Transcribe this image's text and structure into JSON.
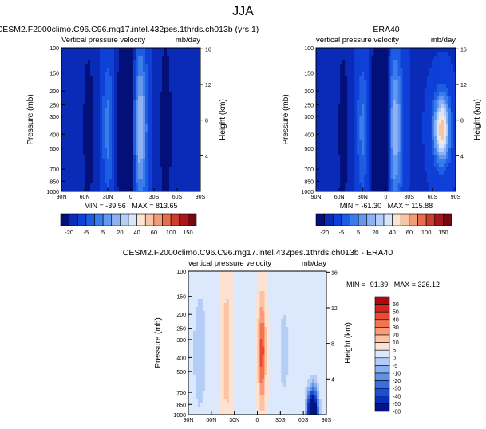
{
  "figure": {
    "title": "JJA"
  },
  "colorbar_top": {
    "colors": [
      "#03107a",
      "#0a2ab8",
      "#0e3fd7",
      "#1d5de3",
      "#3b7ceb",
      "#6597ef",
      "#8cb2f5",
      "#b6cdf7",
      "#d8e5fb",
      "#fbe4d3",
      "#f9c3a4",
      "#f49c77",
      "#e86d4c",
      "#cc3e2b",
      "#a6161a",
      "#7a0710"
    ],
    "labels": [
      "-20",
      "-5",
      "5",
      "20",
      "40",
      "60",
      "100",
      "150"
    ]
  },
  "colorbar_diff": {
    "colors": [
      "#b1080f",
      "#d2261e",
      "#e94b35",
      "#f4744f",
      "#f89c7a",
      "#fbc2a4",
      "#fde2d1",
      "#dce8fb",
      "#b4cdf7",
      "#8aaff2",
      "#5f90ea",
      "#356fe0",
      "#1c4fd0",
      "#0c30b5",
      "#021486"
    ],
    "labels": [
      "60",
      "50",
      "40",
      "30",
      "20",
      "10",
      "5",
      "0",
      "-5",
      "-10",
      "-20",
      "-30",
      "-40",
      "-50",
      "-60"
    ]
  },
  "chart_data": [
    {
      "type": "heatmap",
      "panel": "cesm",
      "title": "CESM2.F2000climo.C96.C96.mg17.intel.432pes.1thrds.ch013b (yrs 1)",
      "left_subtitle": "Vertical pressure velocity",
      "right_subtitle": "mb/day",
      "ylabel": "Pressure (mb)",
      "ylabel_right": "Height (km)",
      "xticks": [
        "90N",
        "60N",
        "30N",
        "0",
        "30S",
        "60S",
        "90S"
      ],
      "yticks": [
        "100",
        "150",
        "200",
        "250",
        "300",
        "400",
        "500",
        "700",
        "850",
        "1000"
      ],
      "yticks_right": [
        "16",
        "12",
        "8",
        "4"
      ],
      "stats": "MIN = -39.56   MAX = 813.65",
      "min": -39.56,
      "max": 813.65,
      "ylim": [
        1000,
        100
      ],
      "xlim": [
        90,
        -90
      ],
      "fields": [
        {
          "lat": 3,
          "sigma_lat": 5,
          "amp": -4.6,
          "sigma_z": 7
        },
        {
          "lat": 14,
          "sigma_lat": 4,
          "amp": -1.4,
          "sigma_z": 6
        },
        {
          "lat": -12,
          "sigma_lat": 6,
          "amp": 3.2,
          "sigma_z": 6
        },
        {
          "lat": -2,
          "sigma_lat": 3,
          "amp": 1.2,
          "sigma_z": 4
        },
        {
          "lat": 30,
          "sigma_lat": 5,
          "amp": 1.6,
          "sigma_z": 5
        },
        {
          "lat": 55,
          "sigma_lat": 6,
          "amp": -1.0,
          "sigma_z": 8
        },
        {
          "lat": -45,
          "sigma_lat": 6,
          "amp": -1.2,
          "sigma_z": 8
        }
      ],
      "base": -2.2
    },
    {
      "type": "heatmap",
      "panel": "era40",
      "title": "ERA40",
      "left_subtitle": "vertical pressure velocity",
      "right_subtitle": "mb/day",
      "ylabel": "Pressure (mb)",
      "ylabel_right": "Height (km)",
      "xticks": [
        "90N",
        "60N",
        "30N",
        "0",
        "30S",
        "60S",
        "90S"
      ],
      "yticks": [
        "100",
        "150",
        "200",
        "250",
        "300",
        "400",
        "500",
        "700",
        "850",
        "1000"
      ],
      "yticks_right": [
        "16",
        "12",
        "8",
        "4"
      ],
      "stats": "MIN = -61.30   MAX = 115.88",
      "min": -61.3,
      "max": 115.88,
      "ylim": [
        1000,
        100
      ],
      "xlim": [
        90,
        -90
      ],
      "fields": [
        {
          "lat": 4,
          "sigma_lat": 5,
          "amp": -4.8,
          "sigma_z": 7
        },
        {
          "lat": 15,
          "sigma_lat": 4,
          "amp": -1.5,
          "sigma_z": 6
        },
        {
          "lat": -12,
          "sigma_lat": 6,
          "amp": 3.0,
          "sigma_z": 6
        },
        {
          "lat": 30,
          "sigma_lat": 5,
          "amp": 1.5,
          "sigma_z": 5
        },
        {
          "lat": -72,
          "sigma_lat": 7,
          "amp": 5.5,
          "sigma_z": 2.5
        },
        {
          "lat": 55,
          "sigma_lat": 6,
          "amp": -1.0,
          "sigma_z": 8
        }
      ],
      "base": -2.2
    },
    {
      "type": "heatmap",
      "panel": "diff",
      "title": "CESM2.F2000climo.C96.C96.mg17.intel.432pes.1thrds.ch013b - ERA40",
      "left_subtitle": "vertical pressure velocity",
      "right_subtitle": "mb/day",
      "ylabel": "Pressure (mb)",
      "ylabel_right": "Height (km)",
      "xticks": [
        "90N",
        "60N",
        "30N",
        "0",
        "30S",
        "60S",
        "90S"
      ],
      "yticks": [
        "100",
        "150",
        "200",
        "250",
        "300",
        "400",
        "500",
        "700",
        "850",
        "1000"
      ],
      "yticks_right": [
        "16",
        "12",
        "8",
        "4"
      ],
      "stats": "MIN = -91.39   MAX = 326.12",
      "min": -91.39,
      "max": 326.12,
      "ylim": [
        1000,
        100
      ],
      "xlim": [
        90,
        -90
      ],
      "fields": [
        {
          "lat": -6,
          "sigma_lat": 3,
          "amp": 2.2,
          "sigma_z": 4
        },
        {
          "lat": 40,
          "sigma_lat": 4,
          "amp": 0.8,
          "sigma_z": 6
        },
        {
          "lat": -72,
          "sigma_lat": 5,
          "amp": -5.5,
          "sigma_z": 2
        },
        {
          "lat": 75,
          "sigma_lat": 8,
          "amp": -0.7,
          "sigma_z": 6
        },
        {
          "lat": -35,
          "sigma_lat": 6,
          "amp": -0.6,
          "sigma_z": 5
        }
      ],
      "base": 0.2
    }
  ]
}
